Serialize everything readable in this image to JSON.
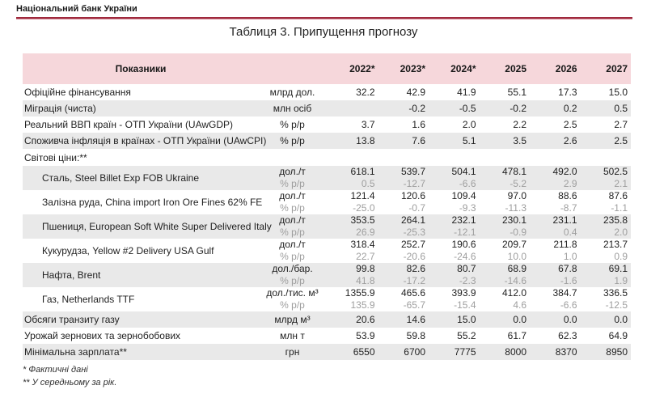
{
  "page": {
    "org_name": "Національний банк України",
    "title": "Таблиця 3. Припущення прогнозу",
    "footnotes": [
      "* Фактичні дані",
      "** У середньому за рік."
    ]
  },
  "colors": {
    "header_pink": "#f6d7db",
    "row_shade_gray": "#e9e9e9",
    "muted_text_gray": "#9e9e9e",
    "brand_rule_red": "#9f2a3d",
    "text_dark": "#1f1f1f"
  },
  "table": {
    "header": {
      "indicators_label": "Показники",
      "years": [
        "2022*",
        "2023*",
        "2024*",
        "2025",
        "2026",
        "2027"
      ]
    },
    "rows": [
      {
        "type": "single",
        "shade": false,
        "label": "Офіційне фінансування",
        "unit": "млрд дол.",
        "values": [
          "32.2",
          "42.9",
          "41.9",
          "55.1",
          "17.3",
          "15.0"
        ]
      },
      {
        "type": "single",
        "shade": true,
        "label": "Міграція (чиста)",
        "unit": "млн осіб",
        "values": [
          "",
          "-0.2",
          "-0.5",
          "-0.2",
          "0.2",
          "0.5"
        ]
      },
      {
        "type": "single",
        "shade": false,
        "label": "Реальний ВВП країн - ОТП України (UAwGDP)",
        "unit": "% р/р",
        "values": [
          "3.7",
          "1.6",
          "2.0",
          "2.2",
          "2.5",
          "2.7"
        ]
      },
      {
        "type": "single",
        "shade": true,
        "label": "Споживча інфляція в країнах - ОТП України (UAwCPI)",
        "unit": "% р/р",
        "values": [
          "13.8",
          "7.6",
          "5.1",
          "3.5",
          "2.6",
          "2.5"
        ]
      },
      {
        "type": "section",
        "shade": false,
        "label": "Світові ціни:**"
      },
      {
        "type": "double",
        "shade": true,
        "label": "Сталь, Steel Billet Exp FOB Ukraine",
        "unit1": "дол./т",
        "values1": [
          "618.1",
          "539.7",
          "504.1",
          "478.1",
          "492.0",
          "502.5"
        ],
        "unit2": "% р/р",
        "values2": [
          "0.5",
          "-12.7",
          "-6.6",
          "-5.2",
          "2.9",
          "2.1"
        ]
      },
      {
        "type": "double",
        "shade": false,
        "label": "Залізна руда, China import Iron Ore Fines 62% FE",
        "unit1": "дол./т",
        "values1": [
          "121.4",
          "120.6",
          "109.4",
          "97.0",
          "88.6",
          "87.6"
        ],
        "unit2": "% р/р",
        "values2": [
          "-25.0",
          "-0.7",
          "-9.3",
          "-11.3",
          "-8.7",
          "-1.1"
        ]
      },
      {
        "type": "double",
        "shade": true,
        "label": "Пшениця, European Soft White Super Delivered Italy",
        "unit1": "дол./т",
        "values1": [
          "353.5",
          "264.1",
          "232.1",
          "230.1",
          "231.1",
          "235.8"
        ],
        "unit2": "% р/р",
        "values2": [
          "26.9",
          "-25.3",
          "-12.1",
          "-0.9",
          "0.4",
          "2.0"
        ]
      },
      {
        "type": "double",
        "shade": false,
        "label": "Кукурудза, Yellow #2 Delivery USA Gulf",
        "unit1": "дол./т",
        "values1": [
          "318.4",
          "252.7",
          "190.6",
          "209.7",
          "211.8",
          "213.7"
        ],
        "unit2": "% р/р",
        "values2": [
          "22.7",
          "-20.6",
          "-24.6",
          "10.0",
          "1.0",
          "0.9"
        ]
      },
      {
        "type": "double",
        "shade": true,
        "label": "Нафта, Brent",
        "unit1": "дол./бар.",
        "values1": [
          "99.8",
          "82.6",
          "80.7",
          "68.9",
          "67.8",
          "69.1"
        ],
        "unit2": "% р/р",
        "values2": [
          "41.8",
          "-17.2",
          "-2.3",
          "-14.6",
          "-1.6",
          "1.9"
        ]
      },
      {
        "type": "double",
        "shade": false,
        "label": "Газ, Netherlands TTF",
        "unit1": "дол./тис. м³",
        "values1": [
          "1355.9",
          "465.6",
          "393.9",
          "412.0",
          "384.7",
          "336.5"
        ],
        "unit2": "% р/р",
        "values2": [
          "135.9",
          "-65.7",
          "-15.4",
          "4.6",
          "-6.6",
          "-12.5"
        ]
      },
      {
        "type": "single",
        "shade": true,
        "label": "Обсяги транзиту газу",
        "unit": "млрд м³",
        "values": [
          "20.6",
          "14.6",
          "15.0",
          "0.0",
          "0.0",
          "0.0"
        ]
      },
      {
        "type": "single",
        "shade": false,
        "label": "Урожай зернових та зернобобових",
        "unit": "млн т",
        "values": [
          "53.9",
          "59.8",
          "55.2",
          "61.7",
          "62.3",
          "64.9"
        ]
      },
      {
        "type": "single",
        "shade": true,
        "label": "Мінімальна зарплата**",
        "unit": "грн",
        "values": [
          "6550",
          "6700",
          "7775",
          "8000",
          "8370",
          "8950"
        ]
      }
    ]
  }
}
